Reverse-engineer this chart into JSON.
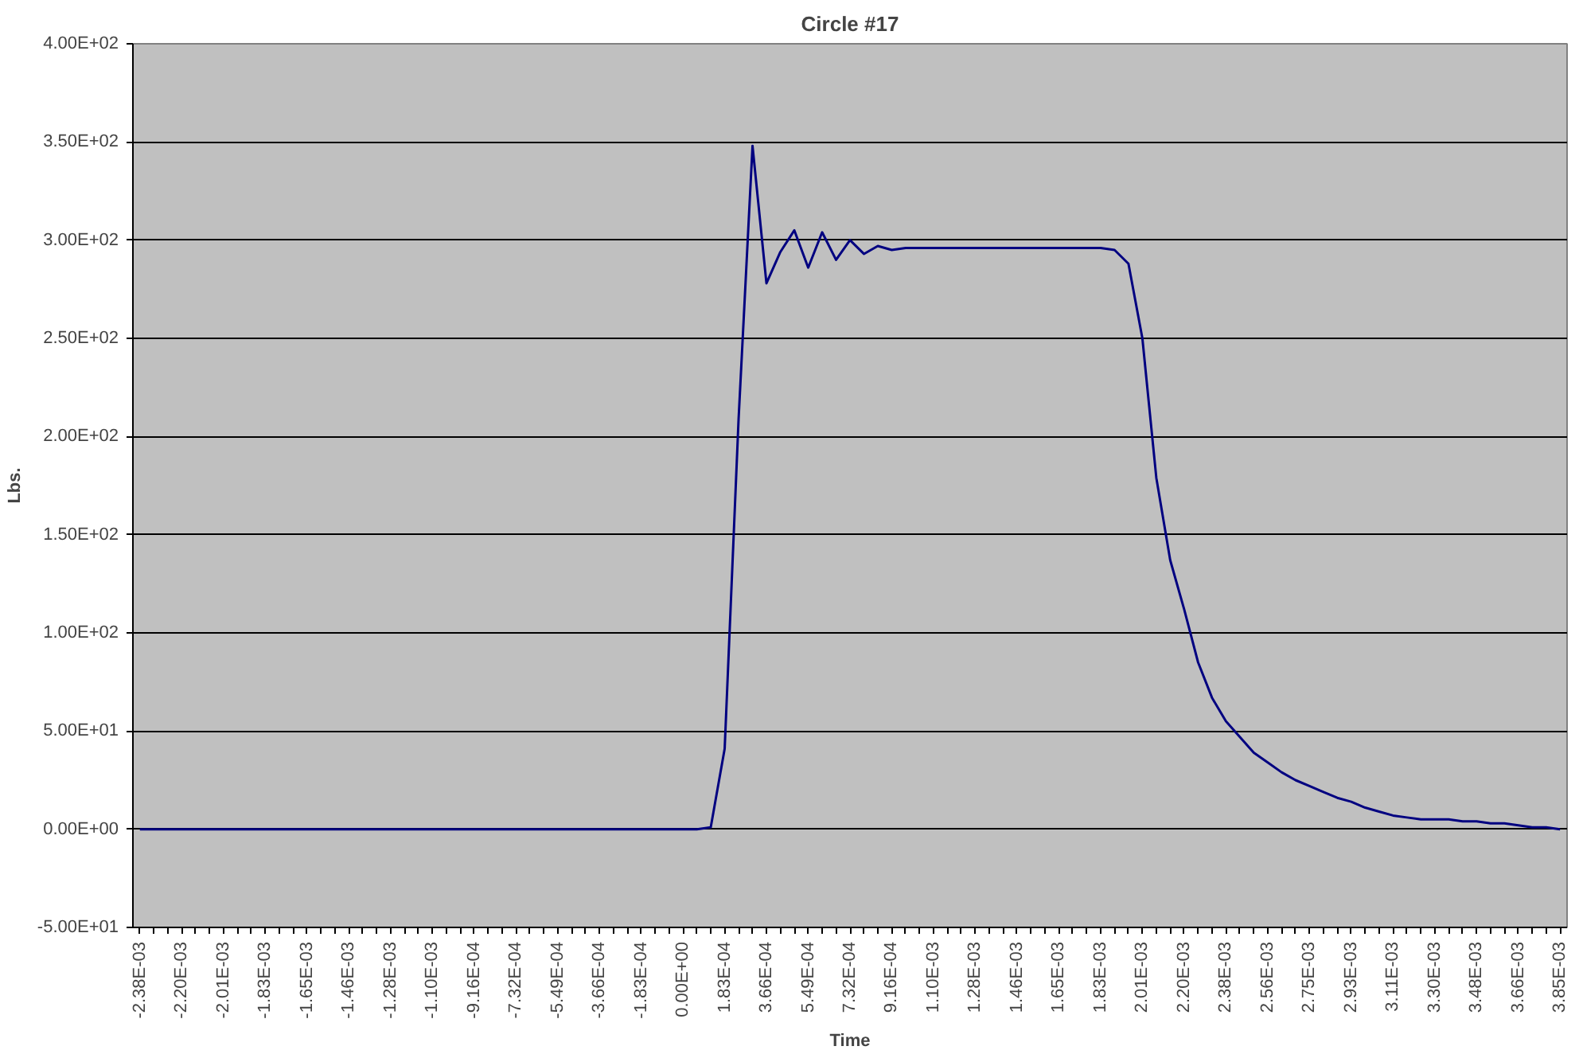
{
  "chart_data": {
    "type": "line",
    "title": "Circle #17",
    "xlabel": "Time",
    "ylabel": "Lbs.",
    "categories": [
      "-2.38E-03",
      null,
      null,
      "-2.20E-03",
      null,
      null,
      "-2.01E-03",
      null,
      null,
      "-1.83E-03",
      null,
      null,
      "-1.65E-03",
      null,
      null,
      "-1.46E-03",
      null,
      null,
      "-1.28E-03",
      null,
      null,
      "-1.10E-03",
      null,
      null,
      "-9.16E-04",
      null,
      null,
      "-7.32E-04",
      null,
      null,
      "-5.49E-04",
      null,
      null,
      "-3.66E-04",
      null,
      null,
      "-1.83E-04",
      null,
      null,
      "0.00E+00",
      null,
      null,
      "1.83E-04",
      null,
      null,
      "3.66E-04",
      null,
      null,
      "5.49E-04",
      null,
      null,
      "7.32E-04",
      null,
      null,
      "9.16E-04",
      null,
      null,
      "1.10E-03",
      null,
      null,
      "1.28E-03",
      null,
      null,
      "1.46E-03",
      null,
      null,
      "1.65E-03",
      null,
      null,
      "1.83E-03",
      null,
      null,
      "2.01E-03",
      null,
      null,
      "2.20E-03",
      null,
      null,
      "2.38E-03",
      null,
      null,
      "2.56E-03",
      null,
      null,
      "2.75E-03",
      null,
      null,
      "2.93E-03",
      null,
      null,
      "3.11E-03",
      null,
      null,
      "3.30E-03",
      null,
      null,
      "3.48E-03",
      null,
      null,
      "3.66E-03",
      null,
      null,
      "3.85E-03"
    ],
    "series": [
      {
        "color": "#000080",
        "values": [
          0,
          0,
          0,
          0,
          0,
          0,
          0,
          0,
          0,
          0,
          0,
          0,
          0,
          0,
          0,
          0,
          0,
          0,
          0,
          0,
          0,
          0,
          0,
          0,
          0,
          0,
          0,
          0,
          0,
          0,
          0,
          0,
          0,
          0,
          0,
          0,
          0,
          0,
          0,
          0,
          0,
          1,
          41,
          209,
          348,
          278,
          294,
          305,
          286,
          304,
          290,
          300,
          293,
          297,
          295,
          296,
          296,
          296,
          296,
          296,
          296,
          296,
          296,
          296,
          296,
          296,
          296,
          296,
          296,
          296,
          295,
          288,
          250,
          179,
          137,
          112,
          85,
          67,
          55,
          47,
          39,
          34,
          29,
          25,
          22,
          19,
          16,
          14,
          11,
          9,
          7,
          6,
          5,
          5,
          5,
          4,
          4,
          3,
          3,
          2,
          1,
          1,
          0
        ]
      }
    ],
    "ylim": [
      -50,
      400
    ],
    "yticks": [
      {
        "value": -50,
        "label": "-5.00E+01"
      },
      {
        "value": 0,
        "label": "0.00E+00"
      },
      {
        "value": 50,
        "label": "5.00E+01"
      },
      {
        "value": 100,
        "label": "1.00E+02"
      },
      {
        "value": 150,
        "label": "1.50E+02"
      },
      {
        "value": 200,
        "label": "2.00E+02"
      },
      {
        "value": 250,
        "label": "2.50E+02"
      },
      {
        "value": 300,
        "label": "3.00E+02"
      },
      {
        "value": 350,
        "label": "3.50E+02"
      },
      {
        "value": 400,
        "label": "4.00E+02"
      }
    ],
    "grid": "y",
    "marker": "none",
    "line_style": "solid"
  }
}
